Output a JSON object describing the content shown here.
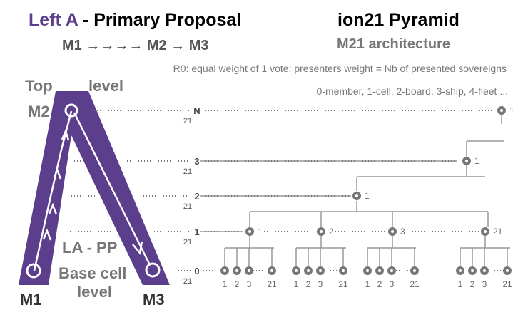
{
  "header": {
    "title_left_a": "Left A",
    "title_left_rest": " - Primary Proposal",
    "flow": "M1 →→→→ M2 → M3",
    "pyramid_title": "ion21 Pyramid",
    "pyramid_subtitle": "M21 architecture"
  },
  "notes": {
    "rule": "R0: equal weight of 1 vote; presenters weight = Nb of presented sovereigns",
    "levels_legend": "0-member, 1-cell, 2-board, 3-ship, 4-fleet ..."
  },
  "triangle": {
    "top_label_1": "Top",
    "top_label_2": "level",
    "apex": "M2",
    "left_corner": "M1",
    "right_corner": "M3",
    "middle_label": "LA - PP",
    "base_label_1": "Base cell",
    "base_label_2": "level",
    "color": "#5b3f8c"
  },
  "levels": [
    {
      "num": "N",
      "sub": "21"
    },
    {
      "num": "3",
      "sub": "21"
    },
    {
      "num": "2",
      "sub": "21"
    },
    {
      "num": "1",
      "sub": "21"
    },
    {
      "num": "0",
      "sub": "21"
    }
  ],
  "node_labels": {
    "N": "1",
    "l3": "1",
    "l2": "1",
    "l1": [
      "1",
      "2",
      "3",
      "21"
    ]
  },
  "leaf_labels": [
    "1",
    "2",
    "3",
    "21"
  ],
  "colors": {
    "node": "#777777",
    "tree": "#999999",
    "text": "#666666"
  }
}
